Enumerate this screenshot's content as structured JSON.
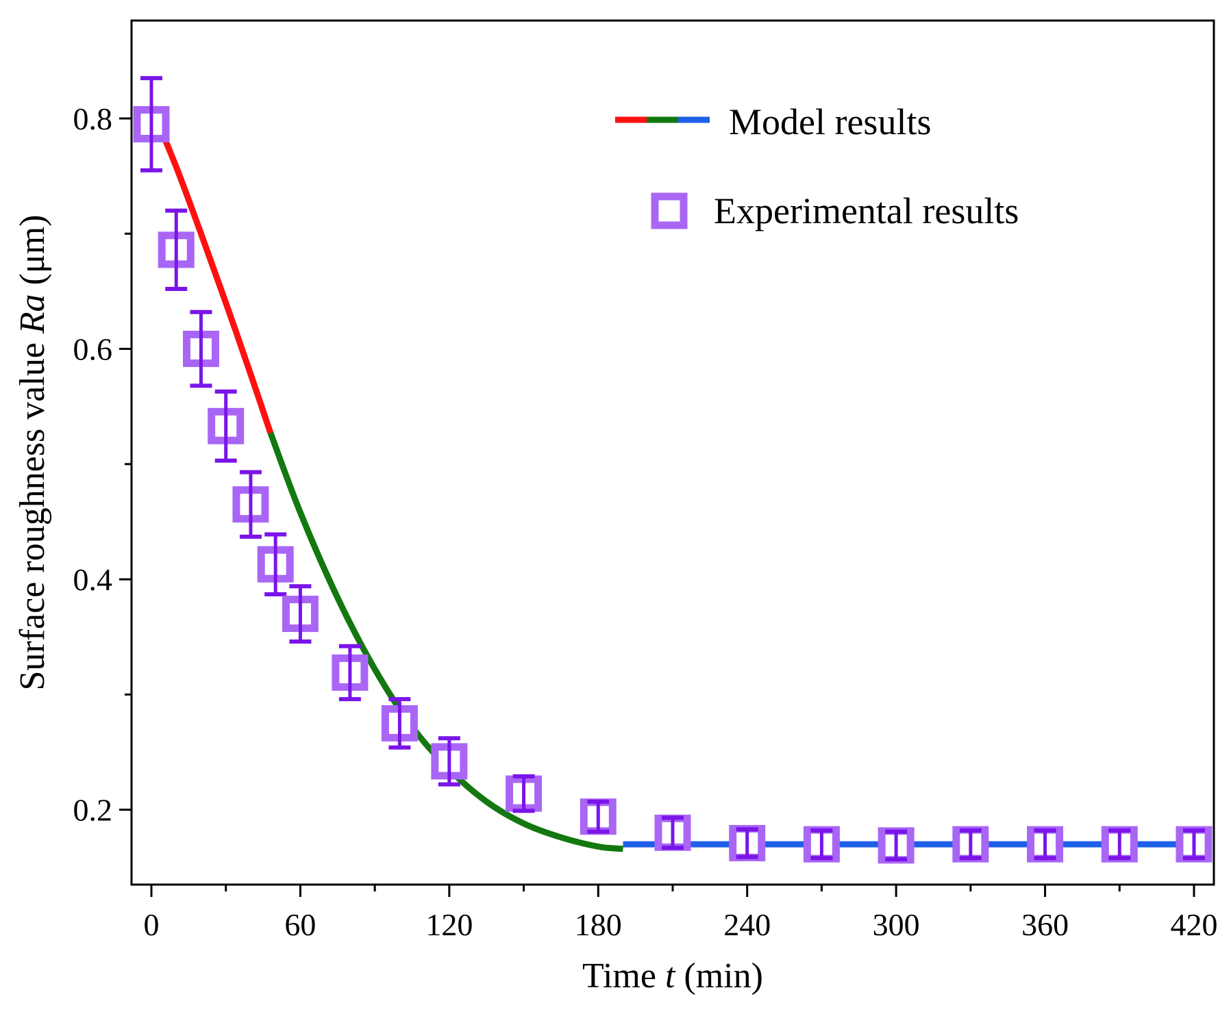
{
  "chart_data": {
    "type": "scatter",
    "xlabel_parts": [
      "Time ",
      "t",
      " (min)"
    ],
    "ylabel_parts": [
      "Surface roughness value ",
      "Ra",
      " (μm)"
    ],
    "xlim": [
      -8,
      428
    ],
    "ylim": [
      0.135,
      0.885
    ],
    "x_ticks": [
      0,
      60,
      120,
      180,
      240,
      300,
      360,
      420
    ],
    "x_tick_labels": [
      "0",
      "60",
      "120",
      "180",
      "240",
      "300",
      "360",
      "420"
    ],
    "x_minor_ticks": [
      30,
      90,
      150,
      210,
      270,
      330,
      390
    ],
    "y_ticks": [
      0.2,
      0.4,
      0.6,
      0.8
    ],
    "y_tick_labels": [
      "0.2",
      "0.4",
      "0.6",
      "0.8"
    ],
    "y_minor_ticks": [
      0.3,
      0.5,
      0.7
    ],
    "grid": false,
    "legend_position": "top-right",
    "series": [
      {
        "name": "Model results",
        "kind": "line",
        "segments": [
          {
            "color": "#ff1010",
            "x": [
              0,
              10,
              20,
              30,
              40,
              48
            ],
            "y": [
              0.81,
              0.758,
              0.7,
              0.64,
              0.578,
              0.527
            ]
          },
          {
            "color": "#12780f",
            "x": [
              48,
              60,
              75,
              90,
              105,
              120,
              135,
              150,
              165,
              180,
              190
            ],
            "y": [
              0.527,
              0.458,
              0.384,
              0.322,
              0.272,
              0.235,
              0.207,
              0.188,
              0.176,
              0.168,
              0.166
            ]
          },
          {
            "color": "#1f5fe8",
            "x": [
              190,
              420
            ],
            "y": [
              0.17,
              0.17
            ]
          }
        ]
      },
      {
        "name": "Experimental results",
        "kind": "scatter",
        "color": "#a966f5",
        "error_color": "#7a14e8",
        "x": [
          0,
          10,
          20,
          30,
          40,
          50,
          60,
          80,
          100,
          120,
          150,
          180,
          210,
          240,
          270,
          300,
          330,
          360,
          390,
          420
        ],
        "y": [
          0.795,
          0.686,
          0.6,
          0.533,
          0.465,
          0.413,
          0.37,
          0.319,
          0.275,
          0.242,
          0.214,
          0.194,
          0.18,
          0.171,
          0.17,
          0.169,
          0.17,
          0.17,
          0.17,
          0.17
        ],
        "error": [
          0.04,
          0.034,
          0.032,
          0.03,
          0.028,
          0.026,
          0.024,
          0.023,
          0.021,
          0.02,
          0.015,
          0.013,
          0.013,
          0.012,
          0.012,
          0.012,
          0.012,
          0.012,
          0.012,
          0.012
        ]
      }
    ]
  }
}
